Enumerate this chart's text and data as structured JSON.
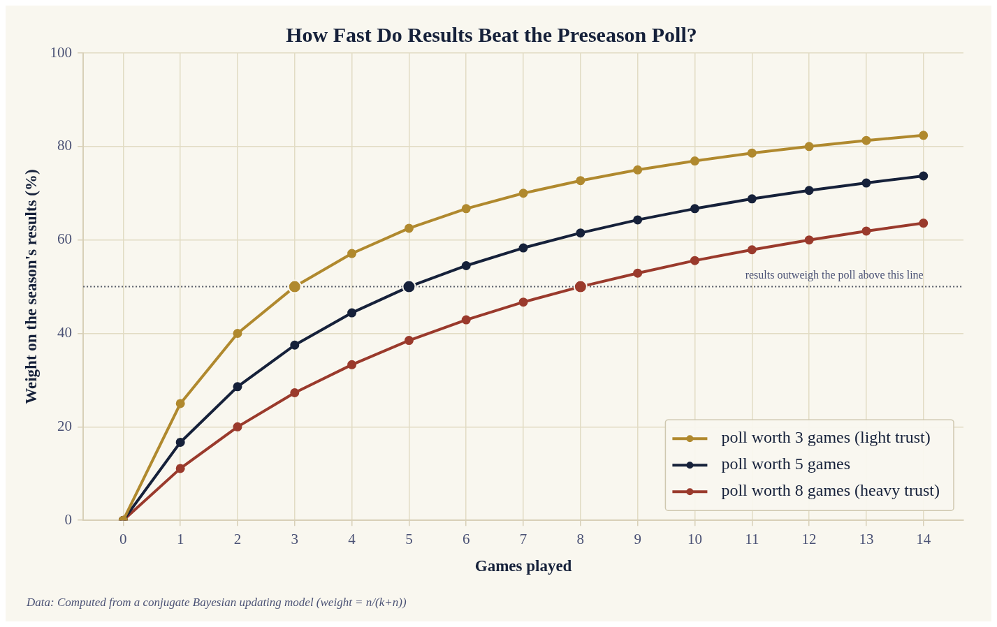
{
  "chart_data": {
    "type": "line",
    "title": "How Fast Do Results Beat the Preseason Poll?",
    "xlabel": "Games played",
    "ylabel": "Weight on the season's results (%)",
    "x": [
      0,
      1,
      2,
      3,
      4,
      5,
      6,
      7,
      8,
      9,
      10,
      11,
      12,
      13,
      14
    ],
    "series": [
      {
        "name": "poll worth 3 games (light trust)",
        "color": "#b0892e",
        "values": [
          0,
          25,
          40,
          50,
          57.1,
          62.5,
          66.7,
          70,
          72.7,
          75,
          76.9,
          78.6,
          80,
          81.3,
          82.4
        ]
      },
      {
        "name": "poll worth 5 games",
        "color": "#16213a",
        "values": [
          0,
          16.7,
          28.6,
          37.5,
          44.4,
          50,
          54.5,
          58.3,
          61.5,
          64.3,
          66.7,
          68.8,
          70.6,
          72.2,
          73.7
        ]
      },
      {
        "name": "poll worth 8 games (heavy trust)",
        "color": "#9a3a2c",
        "values": [
          0,
          11.1,
          20,
          27.3,
          33.3,
          38.5,
          42.9,
          46.7,
          50,
          52.9,
          55.6,
          57.9,
          60,
          61.9,
          63.6
        ]
      },
      {
        "type": "scatter",
        "x": [
          3,
          5,
          8
        ],
        "values": [
          50,
          50,
          50
        ],
        "colors": [
          "#b0892e",
          "#16213a",
          "#9a3a2c"
        ]
      }
    ],
    "xlim": [
      -0.7,
      14.7
    ],
    "xticks": [
      0,
      1,
      2,
      3,
      4,
      5,
      6,
      7,
      8,
      9,
      10,
      11,
      12,
      13,
      14
    ],
    "ylim": [
      0,
      100
    ],
    "yticks": [
      0,
      20,
      40,
      60,
      80,
      100
    ],
    "grid": true,
    "legend": "bottom right",
    "marker": "circle",
    "line_style": "solid",
    "ref_lines": [
      {
        "axis": "y",
        "value": 50,
        "label": "results outweigh the poll above this line",
        "color": "#555a66",
        "line_style": "dotted"
      }
    ],
    "annotations": [
      "Data: Computed from a conjugate Bayesian updating model (weight = n/(k+n))"
    ]
  }
}
